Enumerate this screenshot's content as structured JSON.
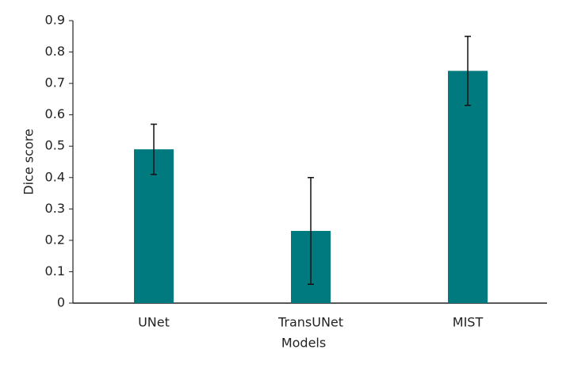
{
  "chart_data": {
    "type": "bar",
    "x_label": "Models",
    "y_label": "Dice score",
    "categories": [
      "UNet",
      "TransUNet",
      "MIST"
    ],
    "values": [
      0.49,
      0.23,
      0.74
    ],
    "errors": [
      0.08,
      0.17,
      0.11
    ],
    "color": "#007a7e",
    "ylim": [
      0,
      0.9
    ],
    "yticks": [
      0,
      0.1,
      0.2,
      0.3,
      0.4,
      0.5,
      0.6,
      0.7,
      0.8,
      0.9
    ],
    "grid": false
  }
}
